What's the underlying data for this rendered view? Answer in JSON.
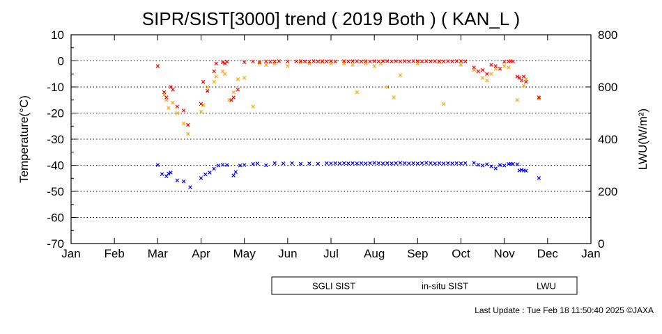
{
  "chart_data": {
    "type": "scatter",
    "title": "SIPR/SIST[3000] trend ( 2019 Both ) ( KAN_L )",
    "ylabel": "Temperature(°C)",
    "y2label": "LWU(W/m²)",
    "xlabel": "",
    "x_tick_labels": [
      "Jan",
      "Feb",
      "Mar",
      "Apr",
      "May",
      "Jun",
      "Jul",
      "Aug",
      "Sep",
      "Oct",
      "Nov",
      "Dec",
      "Jan"
    ],
    "y_ticks": [
      10,
      0,
      -10,
      -20,
      -30,
      -40,
      -50,
      -60,
      -70
    ],
    "y2_ticks": [
      800,
      600,
      400,
      200,
      0
    ],
    "ylim": [
      -70,
      10
    ],
    "y2lim": [
      0,
      800
    ],
    "xlim_month": [
      0,
      12
    ],
    "grid": "dotted horizontal at 10 °C steps",
    "legend_position": "bottom-right",
    "series": [
      {
        "name": "SGLI SIST",
        "color": "#ffa500",
        "x_month": [
          2.0,
          2.15,
          2.2,
          2.25,
          2.35,
          2.45,
          2.6,
          2.7,
          3.0,
          3.05,
          3.15,
          3.3,
          3.35,
          3.5,
          3.55,
          3.65,
          3.75,
          3.85,
          4.0,
          4.2,
          4.35,
          4.5,
          4.7,
          5.0,
          5.3,
          5.5,
          5.8,
          6.0,
          6.3,
          6.5,
          6.6,
          6.8,
          7.0,
          7.15,
          7.3,
          7.45,
          7.6,
          8.0,
          8.5,
          8.6,
          9.0,
          9.3,
          9.5,
          9.6,
          9.7,
          9.8,
          10.0,
          10.1,
          10.3,
          10.45,
          10.5,
          10.8
        ],
        "y": [
          -2.0,
          -13.0,
          -15.0,
          -18.0,
          -16.0,
          -20.0,
          -24.0,
          -28.0,
          -19.5,
          -17.0,
          -10.0,
          -8.0,
          -6.0,
          -4.0,
          -5.0,
          -15.0,
          -12.0,
          -7.0,
          -6.5,
          -17.5,
          -1.0,
          -1.5,
          -1.0,
          -2.0,
          -0.5,
          -1.0,
          -0.5,
          -1.0,
          -1.0,
          -1.5,
          -12.0,
          -1.0,
          -2.0,
          -1.0,
          -10.0,
          -14.0,
          -5.5,
          -1.0,
          -0.5,
          -16.5,
          -1.5,
          -3.5,
          -6.5,
          -7.5,
          -5.0,
          -3.0,
          -2.0,
          -2.5,
          -15.0,
          -9.5,
          -7.0,
          -14.5
        ]
      },
      {
        "name": "in-situ SIST",
        "color": "#ff0000",
        "x_month": [
          2.0,
          2.15,
          2.2,
          2.3,
          2.35,
          2.45,
          2.6,
          2.7,
          3.0,
          3.05,
          3.15,
          3.3,
          3.35,
          3.5,
          3.55,
          3.6,
          3.7,
          3.75,
          3.85,
          4.0,
          4.2,
          4.35,
          4.5,
          4.6,
          4.7,
          4.8,
          5.0,
          5.2,
          5.3,
          5.4,
          5.5,
          5.6,
          5.7,
          5.8,
          5.9,
          6.0,
          6.1,
          6.3,
          6.4,
          6.5,
          6.6,
          6.7,
          6.8,
          6.9,
          7.0,
          7.1,
          7.2,
          7.3,
          7.4,
          7.5,
          7.6,
          7.7,
          7.8,
          7.9,
          8.0,
          8.1,
          8.2,
          8.3,
          8.4,
          8.5,
          8.6,
          8.7,
          8.8,
          8.9,
          9.0,
          9.1,
          9.3,
          9.4,
          9.5,
          9.6,
          9.7,
          9.8,
          9.9,
          10.0,
          10.1,
          10.15,
          10.2,
          10.3,
          10.35,
          10.4,
          10.45,
          10.5,
          10.8
        ],
        "y": [
          -2.0,
          -12.0,
          -14.0,
          -10.0,
          -11.0,
          -17.5,
          -19.0,
          -24.5,
          -16.5,
          -8.0,
          -11.5,
          -4.0,
          -1.0,
          -0.5,
          -1.0,
          -0.3,
          -15.0,
          -14.0,
          -11.0,
          -0.5,
          -0.2,
          -0.5,
          -0.2,
          -0.3,
          -0.2,
          -0.1,
          -0.2,
          -0.2,
          -0.1,
          -0.2,
          -0.3,
          -0.1,
          -0.2,
          -0.1,
          -0.2,
          -0.1,
          -0.2,
          -0.1,
          -0.2,
          -0.1,
          -0.1,
          -0.2,
          -0.1,
          -0.2,
          -0.1,
          -0.2,
          -0.1,
          -0.1,
          -0.2,
          -0.1,
          -0.2,
          -0.1,
          -0.2,
          -0.1,
          -0.1,
          -0.2,
          -0.1,
          -0.2,
          -0.1,
          -0.1,
          -0.2,
          -0.1,
          -0.2,
          -0.1,
          -0.1,
          -0.2,
          -2.5,
          -4.0,
          -3.5,
          -5.0,
          -1.5,
          -2.0,
          -3.0,
          -0.3,
          -0.2,
          -0.1,
          -0.2,
          -6.0,
          -6.5,
          -7.5,
          -6.0,
          -8.0,
          -14.0
        ]
      },
      {
        "name": "LWU",
        "color": "#0000ff",
        "x_month": [
          2.0,
          2.1,
          2.2,
          2.25,
          2.3,
          2.45,
          2.6,
          2.75,
          3.0,
          3.1,
          3.2,
          3.3,
          3.4,
          3.5,
          3.6,
          3.75,
          3.8,
          3.9,
          4.0,
          4.2,
          4.3,
          4.5,
          4.7,
          4.9,
          5.1,
          5.3,
          5.5,
          5.7,
          5.9,
          6.0,
          6.1,
          6.2,
          6.3,
          6.4,
          6.5,
          6.6,
          6.7,
          6.8,
          6.9,
          7.0,
          7.1,
          7.2,
          7.3,
          7.4,
          7.5,
          7.6,
          7.7,
          7.8,
          7.9,
          8.0,
          8.1,
          8.2,
          8.3,
          8.4,
          8.5,
          8.6,
          8.7,
          8.8,
          8.9,
          9.0,
          9.1,
          9.3,
          9.4,
          9.5,
          9.6,
          9.7,
          9.8,
          9.9,
          10.0,
          10.1,
          10.15,
          10.2,
          10.3,
          10.35,
          10.4,
          10.45,
          10.5,
          10.8
        ],
        "y": [
          301,
          266,
          258,
          268,
          272,
          242,
          238,
          216,
          251,
          265,
          272,
          287,
          299,
          302,
          301,
          261,
          274,
          299,
          301,
          305,
          307,
          300,
          308,
          307,
          308,
          306,
          307,
          306,
          308,
          307,
          308,
          307,
          308,
          307,
          308,
          307,
          308,
          307,
          308,
          309,
          308,
          307,
          308,
          307,
          308,
          309,
          308,
          307,
          308,
          307,
          308,
          309,
          308,
          307,
          308,
          307,
          308,
          307,
          308,
          307,
          308,
          309,
          302,
          299,
          304,
          296,
          288,
          301,
          299,
          305,
          306,
          305,
          304,
          280,
          282,
          280,
          279,
          251
        ]
      }
    ]
  },
  "footer": "Last Update : Tue Feb 18 11:50:40 2025  ©JAXA"
}
